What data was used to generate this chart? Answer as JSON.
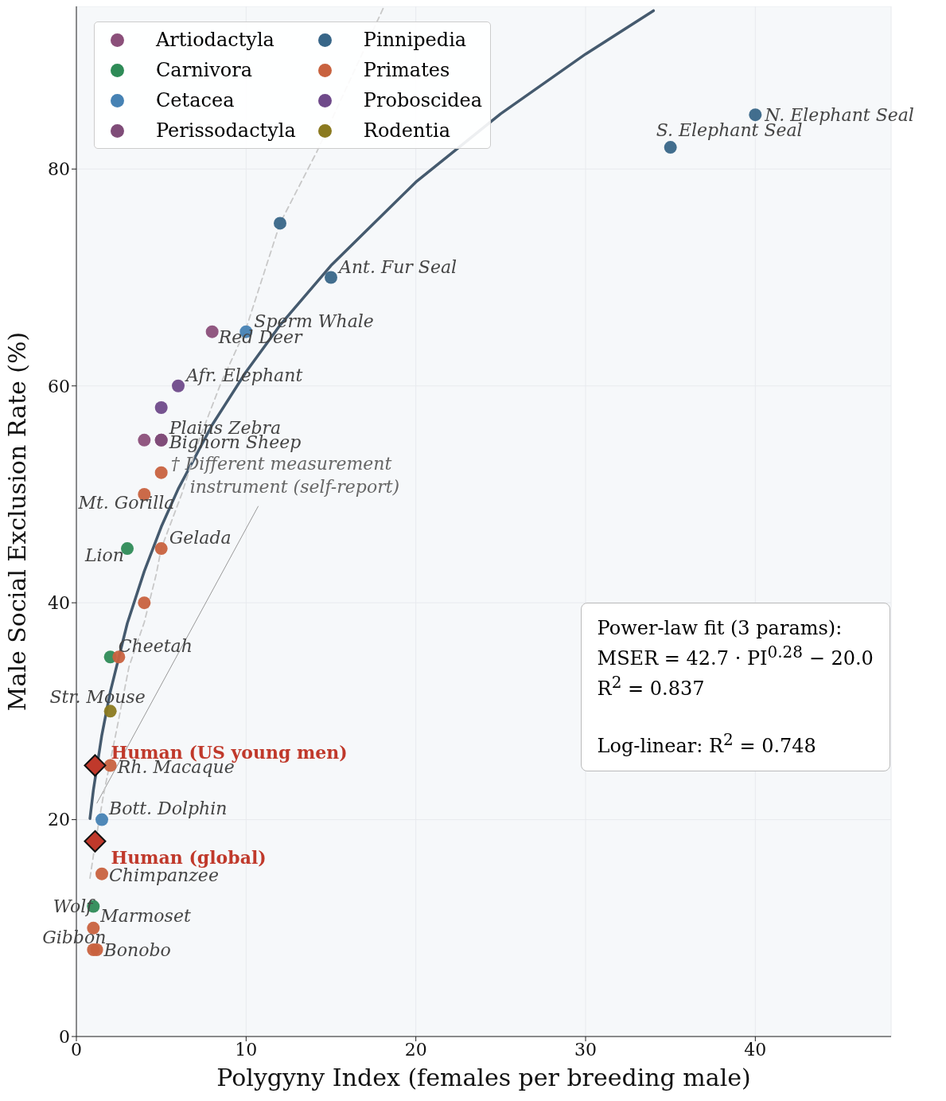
{
  "chart_data": {
    "type": "scatter",
    "xlabel": "Polygyny Index (females per breeding male)",
    "ylabel": "Male Social Exclusion Rate (%)",
    "xlim": [
      0,
      48
    ],
    "xticks": [
      0,
      10,
      20,
      30,
      40
    ],
    "ylim": [
      0,
      95
    ],
    "yticks": [
      0,
      20,
      40,
      60,
      80
    ],
    "grid": true,
    "legend": "top left",
    "marker": "circle",
    "series": [
      {
        "type": "line",
        "color": "#455a6e",
        "line_style": "solid",
        "marker": "none",
        "x": [
          0.8,
          1,
          1.5,
          2,
          3,
          4,
          5,
          6,
          8,
          10,
          12,
          15,
          20,
          25,
          30,
          34
        ],
        "values": [
          20.1,
          22.7,
          27.8,
          31.8,
          38.1,
          42.9,
          47.0,
          50.5,
          56.4,
          61.3,
          65.6,
          71.1,
          78.8,
          85.1,
          90.6,
          94.6
        ]
      },
      {
        "type": "line",
        "color": "#c8c8c8",
        "line_style": "dashed",
        "marker": "none",
        "x": [
          0.8,
          1.1,
          1.6,
          2.4,
          3.1,
          4.0,
          4.7,
          5,
          6.2,
          7.2,
          8.5,
          10,
          12,
          14.2,
          18.1
        ],
        "values": [
          14.6,
          17.7,
          22.3,
          28.5,
          34.1,
          38.2,
          42.6,
          45,
          50,
          54.9,
          60.2,
          65.3,
          75,
          81.7,
          94.9
        ]
      },
      {
        "name": "Artiodactyla",
        "color": "#8b4f7a",
        "x": [
          8,
          5,
          4
        ],
        "values": [
          65,
          55,
          55
        ],
        "value_labels": [
          "Red Deer",
          "Bighorn Sheep",
          null
        ]
      },
      {
        "name": "Carnivora",
        "color": "#2e8b57",
        "x": [
          3,
          2,
          1
        ],
        "values": [
          45,
          35,
          12
        ],
        "value_labels": [
          "Lion",
          "Cheetah",
          "Wolf"
        ]
      },
      {
        "name": "Cetacea",
        "color": "#4682b4",
        "x": [
          10,
          1.5
        ],
        "values": [
          65,
          20
        ],
        "value_labels": [
          "Sperm Whale",
          "Bott. Dolphin"
        ]
      },
      {
        "name": "Perissodactyla",
        "color": "#7f4c78",
        "x": [
          5
        ],
        "values": [
          55
        ],
        "value_labels": [
          "Plains Zebra"
        ]
      },
      {
        "name": "Pinnipedia",
        "color": "#386688",
        "x": [
          40,
          35,
          12,
          15
        ],
        "values": [
          85,
          82,
          75,
          70
        ],
        "value_labels": [
          "N. Elephant Seal",
          "S. Elephant Seal",
          null,
          "Ant. Fur Seal"
        ]
      },
      {
        "name": "Primates",
        "color": "#c8623f",
        "x": [
          5,
          4,
          5,
          4,
          2.5,
          2,
          1.5,
          1,
          1,
          1.2
        ],
        "values": [
          52,
          50,
          45,
          40,
          35,
          25,
          15,
          10,
          8,
          8
        ],
        "value_labels": [
          null,
          "Mt. Gorilla",
          "Gelada",
          null,
          null,
          "Rh. Macaque",
          "Chimpanzee",
          "Marmoset",
          "Gibbon",
          "Bonobo"
        ]
      },
      {
        "name": "Proboscidea",
        "color": "#6f4a8a",
        "x": [
          6,
          5
        ],
        "values": [
          60,
          58
        ],
        "value_labels": [
          "Afr. Elephant",
          null
        ]
      },
      {
        "name": "Rodentia",
        "color": "#8b7a20",
        "x": [
          2
        ],
        "values": [
          30
        ],
        "value_labels": [
          "Str. Mouse"
        ]
      },
      {
        "color": "#c0392b",
        "marker": "diamond",
        "x": [
          1.1,
          1.1
        ],
        "values": [
          25,
          18
        ],
        "value_labels": [
          "Human (US young men)",
          "Human (global)"
        ]
      }
    ],
    "annotations": [
      "† Different measurement\ninstrument (self-report)",
      "Power-law fit (3 params):",
      "MSER = 42.7 · PI$^{0.28}$ − 20.0",
      "R$^{2}$ = 0.837",
      "Log-linear: R$^{2}$ = 0.748"
    ]
  }
}
